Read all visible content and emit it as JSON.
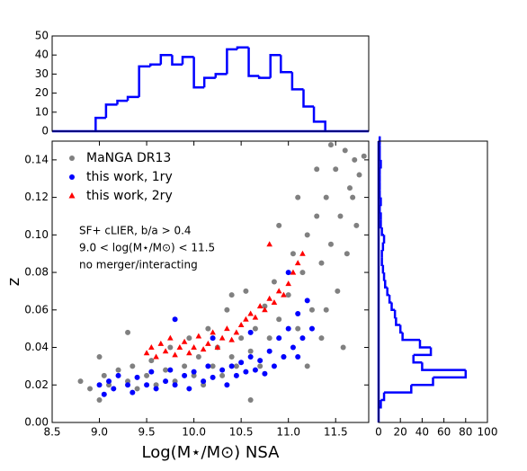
{
  "chart_data": [
    {
      "type": "scatter",
      "xlabel": "Log(M⋆/M⊙) NSA",
      "ylabel": "z",
      "annotations": [
        "SF+ cLIER, b/a > 0.4",
        "9.0 < log(M⋆/M⊙) < 11.5",
        "no merger/interacting"
      ],
      "legend": "upper left",
      "xlim": [
        8.5,
        11.85
      ],
      "ylim": [
        0,
        0.15
      ],
      "xticks": [
        8.5,
        {
          "value": 9,
          "label": "9.0"
        },
        9.5,
        {
          "value": 10,
          "label": "10.0"
        },
        10.5,
        {
          "value": 11,
          "label": "11.0"
        },
        11.5
      ],
      "yticks": [
        {
          "value": 0,
          "label": "0.00"
        },
        {
          "value": 0.02,
          "label": "0.02"
        },
        {
          "value": 0.04,
          "label": "0.04"
        },
        {
          "value": 0.06,
          "label": "0.06"
        },
        {
          "value": 0.08,
          "label": "0.08"
        },
        {
          "value": 0.1,
          "label": "0.10"
        },
        {
          "value": 0.12,
          "label": "0.12"
        },
        {
          "value": 0.14,
          "label": "0.14"
        }
      ],
      "series": [
        {
          "name": "MaNGA DR13",
          "color": "#808080",
          "marker": "circle",
          "x": [
            8.8,
            8.9,
            9.0,
            9.05,
            9.1,
            9.2,
            9.3,
            9.35,
            9.4,
            9.5,
            9.55,
            9.6,
            9.7,
            9.75,
            9.8,
            9.9,
            9.95,
            10.0,
            10.05,
            10.1,
            10.15,
            10.2,
            10.25,
            10.3,
            10.35,
            10.4,
            10.45,
            10.5,
            10.55,
            10.6,
            10.65,
            10.7,
            10.75,
            10.8,
            10.85,
            10.9,
            10.95,
            11.0,
            11.05,
            11.1,
            11.15,
            11.2,
            11.25,
            11.3,
            11.35,
            11.4,
            11.45,
            11.5,
            11.52,
            11.55,
            11.6,
            11.62,
            11.65,
            11.7,
            11.72,
            11.75,
            11.8,
            11.45,
            11.3,
            11.1,
            10.9,
            11.58,
            11.35,
            10.6,
            9.3,
            10.4,
            11.4,
            11.2,
            9.0,
            11.68
          ],
          "values": [
            0.022,
            0.018,
            0.012,
            0.025,
            0.02,
            0.028,
            0.022,
            0.03,
            0.018,
            0.025,
            0.033,
            0.02,
            0.028,
            0.04,
            0.022,
            0.03,
            0.045,
            0.025,
            0.035,
            0.02,
            0.05,
            0.03,
            0.04,
            0.025,
            0.06,
            0.035,
            0.03,
            0.045,
            0.07,
            0.038,
            0.05,
            0.03,
            0.062,
            0.045,
            0.075,
            0.055,
            0.035,
            0.068,
            0.09,
            0.05,
            0.08,
            0.1,
            0.06,
            0.11,
            0.085,
            0.12,
            0.095,
            0.135,
            0.07,
            0.11,
            0.145,
            0.09,
            0.125,
            0.14,
            0.105,
            0.132,
            0.142,
            0.148,
            0.135,
            0.12,
            0.105,
            0.04,
            0.045,
            0.012,
            0.048,
            0.068,
            0.06,
            0.03,
            0.035,
            0.12
          ]
        },
        {
          "name": "this work, 1ry",
          "color": "#0000ff",
          "marker": "circle",
          "x": [
            9.0,
            9.05,
            9.1,
            9.15,
            9.2,
            9.3,
            9.35,
            9.4,
            9.5,
            9.55,
            9.6,
            9.7,
            9.75,
            9.8,
            9.9,
            9.95,
            10.0,
            10.1,
            10.15,
            10.2,
            10.3,
            10.35,
            10.4,
            10.45,
            10.5,
            10.55,
            10.6,
            10.65,
            10.7,
            10.75,
            10.8,
            10.85,
            10.9,
            10.95,
            11.0,
            11.05,
            11.1,
            11.15,
            11.2,
            11.25,
            11.0,
            10.6,
            9.8,
            10.2,
            11.1
          ],
          "values": [
            0.02,
            0.015,
            0.022,
            0.018,
            0.025,
            0.02,
            0.016,
            0.024,
            0.02,
            0.027,
            0.018,
            0.022,
            0.028,
            0.02,
            0.025,
            0.018,
            0.027,
            0.022,
            0.03,
            0.024,
            0.028,
            0.02,
            0.03,
            0.025,
            0.032,
            0.027,
            0.035,
            0.028,
            0.033,
            0.026,
            0.038,
            0.03,
            0.045,
            0.035,
            0.05,
            0.04,
            0.058,
            0.045,
            0.065,
            0.05,
            0.08,
            0.048,
            0.055,
            0.045,
            0.035
          ]
        },
        {
          "name": "this work, 2ry",
          "color": "#ff0000",
          "marker": "triangle",
          "x": [
            9.5,
            9.55,
            9.6,
            9.65,
            9.7,
            9.75,
            9.8,
            9.85,
            9.9,
            9.95,
            10.0,
            10.05,
            10.1,
            10.15,
            10.2,
            10.25,
            10.3,
            10.35,
            10.4,
            10.45,
            10.5,
            10.55,
            10.6,
            10.65,
            10.7,
            10.75,
            10.8,
            10.85,
            10.9,
            10.95,
            11.0,
            11.05,
            11.1,
            11.15,
            10.8
          ],
          "values": [
            0.037,
            0.04,
            0.035,
            0.042,
            0.038,
            0.045,
            0.036,
            0.04,
            0.043,
            0.037,
            0.04,
            0.046,
            0.039,
            0.042,
            0.048,
            0.04,
            0.045,
            0.05,
            0.044,
            0.048,
            0.052,
            0.055,
            0.058,
            0.056,
            0.062,
            0.06,
            0.066,
            0.064,
            0.07,
            0.068,
            0.074,
            0.08,
            0.085,
            0.09,
            0.095
          ]
        }
      ]
    },
    {
      "type": "histogram",
      "orientation": "vertical",
      "color": "#0000ff",
      "xlim": [
        8.5,
        11.85
      ],
      "ylim": [
        0,
        50
      ],
      "yticks": [
        0,
        10,
        20,
        30,
        40,
        50
      ],
      "bins": [
        8.96,
        9.07,
        9.19,
        9.3,
        9.42,
        9.54,
        9.65,
        9.77,
        9.88,
        10.0,
        10.11,
        10.23,
        10.35,
        10.46,
        10.58,
        10.69,
        10.81,
        10.92,
        11.04,
        11.16,
        11.27,
        11.39
      ],
      "values": [
        7,
        14,
        16,
        18,
        34,
        35,
        40,
        35,
        39,
        23,
        28,
        30,
        43,
        44,
        29,
        28,
        40,
        31,
        22,
        13,
        5
      ]
    },
    {
      "type": "histogram",
      "orientation": "horizontal",
      "color": "#0000ff",
      "xlim": [
        0,
        100
      ],
      "ylim": [
        0,
        0.15
      ],
      "xticks": [
        0,
        20,
        40,
        60,
        80,
        100
      ],
      "bins": [
        0.008,
        0.012,
        0.016,
        0.02,
        0.024,
        0.028,
        0.032,
        0.036,
        0.04,
        0.044,
        0.048,
        0.052,
        0.056,
        0.06,
        0.064,
        0.068,
        0.072,
        0.076,
        0.08,
        0.084,
        0.088,
        0.092,
        0.096,
        0.1,
        0.104,
        0.108,
        0.112,
        0.116,
        0.12,
        0.124,
        0.128,
        0.132,
        0.136,
        0.14,
        0.144,
        0.148,
        0.152
      ],
      "values": [
        2,
        5,
        30,
        50,
        80,
        40,
        32,
        48,
        38,
        22,
        20,
        16,
        15,
        12,
        10,
        8,
        6,
        5,
        4,
        3,
        3,
        4,
        5,
        3,
        2,
        2,
        1,
        2,
        1,
        1,
        1,
        1,
        2,
        1,
        1,
        1
      ]
    }
  ]
}
